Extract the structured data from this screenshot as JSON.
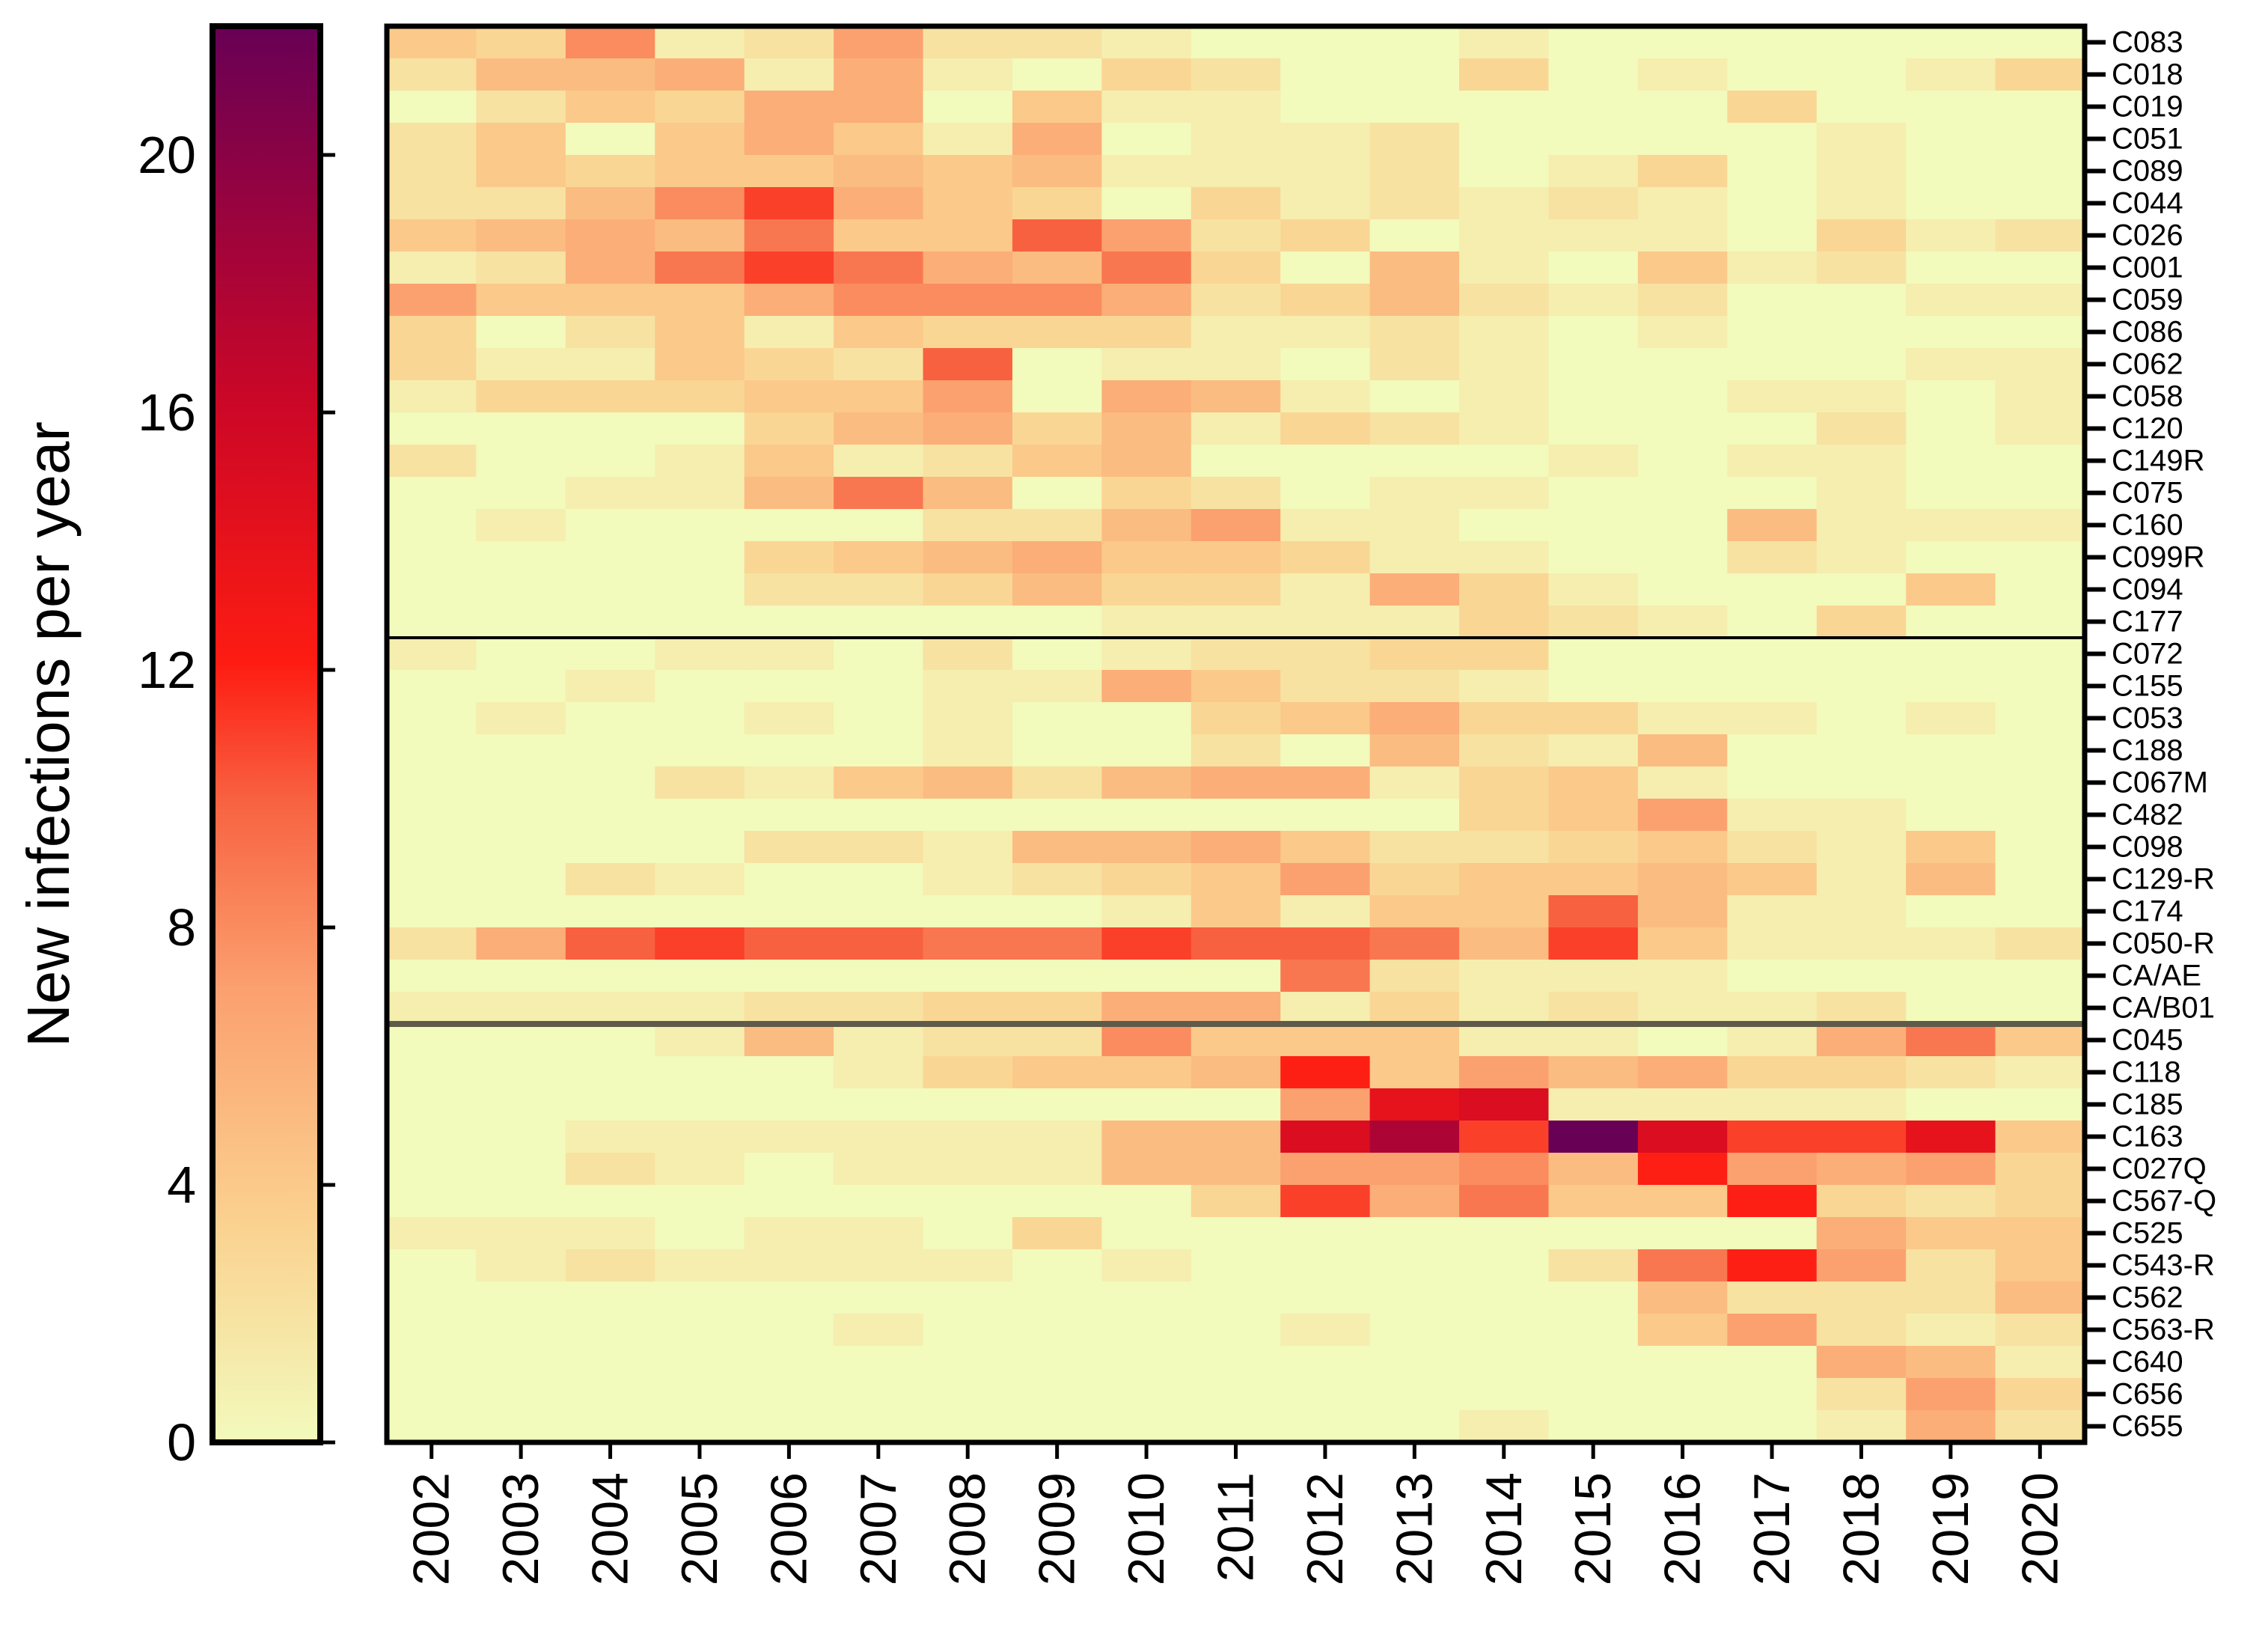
{
  "chart_data": {
    "type": "heatmap",
    "title": "",
    "xlabel": "",
    "ylabel": "",
    "colorbar": {
      "label": "New infections per year",
      "range": [
        0,
        22
      ],
      "ticks": [
        0,
        4,
        8,
        12,
        16,
        20
      ],
      "colorscale": [
        [
          0.0,
          "#f2fabc"
        ],
        [
          0.16,
          "#fbd08e"
        ],
        [
          0.32,
          "#fba06f"
        ],
        [
          0.45,
          "#f86442"
        ],
        [
          0.55,
          "#fe1c12"
        ],
        [
          0.73,
          "#cd0726"
        ],
        [
          1.0,
          "#680055"
        ]
      ]
    },
    "x": [
      "2002",
      "2003",
      "2004",
      "2005",
      "2006",
      "2007",
      "2008",
      "2009",
      "2010",
      "2011",
      "2012",
      "2013",
      "2014",
      "2015",
      "2016",
      "2017",
      "2018",
      "2019",
      "2020"
    ],
    "y": [
      "C083",
      "C018",
      "C019",
      "C051",
      "C089",
      "C044",
      "C026",
      "C001",
      "C059",
      "C086",
      "C062",
      "C058",
      "C120",
      "C149R",
      "C075",
      "C160",
      "C099R",
      "C094",
      "C177",
      "C072",
      "C155",
      "C053",
      "C188",
      "C067M",
      "C482",
      "C098",
      "C129-R",
      "C174",
      "C050-R",
      "CA/AE",
      "CA/B01",
      "C045",
      "C118",
      "C185",
      "C163",
      "C027Q",
      "C567-Q",
      "C525",
      "C543-R",
      "C562",
      "C563-R",
      "C640",
      "C656",
      "C655"
    ],
    "y_groups": [
      {
        "rows": [
          0,
          18
        ]
      },
      {
        "rows": [
          19,
          30
        ]
      },
      {
        "rows": [
          31,
          43
        ]
      }
    ],
    "values": [
      [
        4,
        3,
        8,
        1,
        2,
        7,
        2,
        2,
        1,
        0,
        0,
        0,
        1,
        0,
        0,
        0,
        0,
        0,
        0
      ],
      [
        2,
        5,
        5,
        6,
        1,
        6,
        1,
        0,
        3,
        2,
        0,
        0,
        3,
        0,
        1,
        0,
        0,
        1,
        3
      ],
      [
        0,
        2,
        4,
        3,
        6,
        6,
        0,
        4,
        1,
        1,
        0,
        0,
        0,
        0,
        0,
        3,
        0,
        0,
        0
      ],
      [
        2,
        4,
        0,
        4,
        6,
        4,
        1,
        6,
        0,
        1,
        1,
        2,
        0,
        0,
        0,
        0,
        1,
        0,
        0
      ],
      [
        2,
        4,
        3,
        4,
        4,
        5,
        4,
        5,
        1,
        1,
        1,
        2,
        0,
        1,
        3,
        0,
        1,
        0,
        0
      ],
      [
        2,
        2,
        5,
        8,
        11,
        6,
        4,
        3,
        0,
        3,
        1,
        2,
        1,
        2,
        1,
        0,
        1,
        0,
        0
      ],
      [
        4,
        5,
        6,
        5,
        9,
        4,
        4,
        10,
        7,
        2,
        3,
        0,
        1,
        1,
        1,
        0,
        3,
        1,
        2
      ],
      [
        1,
        2,
        6,
        9,
        11,
        9,
        6,
        5,
        9,
        3,
        0,
        5,
        1,
        0,
        4,
        1,
        2,
        0,
        0
      ],
      [
        7,
        4,
        4,
        4,
        6,
        8,
        8,
        8,
        6,
        2,
        3,
        5,
        2,
        1,
        2,
        0,
        0,
        1,
        1
      ],
      [
        3,
        0,
        2,
        4,
        1,
        4,
        3,
        3,
        3,
        1,
        1,
        2,
        1,
        0,
        1,
        0,
        0,
        0,
        0
      ],
      [
        3,
        1,
        1,
        4,
        3,
        2,
        10,
        0,
        1,
        1,
        0,
        2,
        1,
        0,
        0,
        0,
        0,
        1,
        1
      ],
      [
        1,
        3,
        3,
        3,
        4,
        4,
        7,
        0,
        6,
        5,
        1,
        0,
        1,
        0,
        0,
        1,
        1,
        0,
        1
      ],
      [
        0,
        0,
        0,
        0,
        3,
        5,
        6,
        3,
        5,
        1,
        3,
        2,
        1,
        0,
        0,
        0,
        2,
        0,
        1
      ],
      [
        2,
        0,
        0,
        1,
        4,
        1,
        2,
        4,
        5,
        0,
        0,
        0,
        0,
        1,
        0,
        1,
        1,
        0,
        0
      ],
      [
        0,
        0,
        1,
        1,
        5,
        9,
        5,
        0,
        3,
        2,
        0,
        1,
        1,
        0,
        0,
        0,
        1,
        0,
        0
      ],
      [
        0,
        1,
        0,
        0,
        0,
        0,
        2,
        2,
        5,
        7,
        1,
        1,
        0,
        0,
        0,
        5,
        1,
        1,
        1
      ],
      [
        0,
        0,
        0,
        0,
        3,
        4,
        5,
        6,
        4,
        4,
        3,
        1,
        1,
        0,
        0,
        2,
        1,
        0,
        0
      ],
      [
        0,
        0,
        0,
        0,
        2,
        2,
        3,
        5,
        3,
        3,
        1,
        6,
        3,
        1,
        0,
        0,
        0,
        4,
        0
      ],
      [
        0,
        0,
        0,
        0,
        0,
        0,
        0,
        0,
        1,
        1,
        1,
        1,
        3,
        2,
        1,
        0,
        3,
        0,
        0
      ],
      [
        1,
        0,
        0,
        1,
        1,
        0,
        2,
        0,
        1,
        2,
        2,
        3,
        3,
        0,
        0,
        0,
        0,
        0,
        0
      ],
      [
        0,
        0,
        1,
        0,
        0,
        0,
        1,
        1,
        6,
        4,
        2,
        2,
        1,
        0,
        0,
        0,
        0,
        0,
        0
      ],
      [
        0,
        1,
        0,
        0,
        1,
        0,
        1,
        0,
        0,
        3,
        4,
        6,
        3,
        3,
        1,
        1,
        0,
        1,
        0
      ],
      [
        0,
        0,
        0,
        0,
        0,
        0,
        1,
        0,
        0,
        2,
        0,
        5,
        2,
        1,
        5,
        0,
        0,
        0,
        0
      ],
      [
        0,
        0,
        0,
        2,
        1,
        4,
        5,
        2,
        5,
        6,
        6,
        1,
        3,
        4,
        1,
        0,
        0,
        0,
        0
      ],
      [
        0,
        0,
        0,
        0,
        0,
        0,
        0,
        0,
        0,
        0,
        0,
        0,
        3,
        4,
        7,
        1,
        1,
        0,
        0
      ],
      [
        0,
        0,
        0,
        0,
        2,
        2,
        1,
        5,
        5,
        6,
        4,
        2,
        2,
        3,
        4,
        2,
        1,
        4,
        0
      ],
      [
        0,
        0,
        2,
        1,
        0,
        0,
        1,
        2,
        3,
        4,
        7,
        3,
        4,
        4,
        5,
        4,
        1,
        5,
        0
      ],
      [
        0,
        0,
        0,
        0,
        0,
        0,
        0,
        0,
        1,
        4,
        1,
        4,
        4,
        10,
        5,
        1,
        1,
        0,
        0
      ],
      [
        2,
        6,
        10,
        11,
        10,
        10,
        9,
        9,
        11,
        10,
        10,
        9,
        5,
        11,
        4,
        1,
        1,
        1,
        2
      ],
      [
        0,
        0,
        0,
        0,
        0,
        0,
        0,
        0,
        0,
        0,
        9,
        2,
        1,
        1,
        1,
        0,
        0,
        0,
        0
      ],
      [
        1,
        1,
        1,
        1,
        2,
        2,
        3,
        3,
        6,
        6,
        1,
        3,
        1,
        2,
        1,
        1,
        2,
        0,
        0
      ],
      [
        0,
        0,
        0,
        1,
        5,
        1,
        2,
        2,
        8,
        4,
        4,
        4,
        1,
        1,
        0,
        1,
        6,
        9,
        4
      ],
      [
        0,
        0,
        0,
        0,
        0,
        1,
        3,
        4,
        4,
        5,
        12,
        4,
        7,
        5,
        6,
        3,
        3,
        2,
        1
      ],
      [
        0,
        0,
        0,
        0,
        0,
        0,
        0,
        0,
        0,
        0,
        7,
        14,
        15,
        1,
        1,
        1,
        1,
        0,
        0
      ],
      [
        0,
        0,
        1,
        1,
        1,
        1,
        1,
        1,
        5,
        5,
        15,
        18,
        11,
        22,
        15,
        11,
        11,
        14,
        4
      ],
      [
        0,
        0,
        2,
        1,
        0,
        1,
        1,
        1,
        5,
        5,
        7,
        7,
        8,
        5,
        12,
        7,
        6,
        7,
        3
      ],
      [
        0,
        0,
        0,
        0,
        0,
        0,
        0,
        0,
        0,
        3,
        11,
        6,
        9,
        4,
        4,
        12,
        3,
        2,
        3
      ],
      [
        1,
        1,
        1,
        0,
        1,
        1,
        0,
        3,
        0,
        0,
        0,
        0,
        0,
        0,
        0,
        0,
        6,
        4,
        4
      ],
      [
        0,
        1,
        2,
        1,
        1,
        1,
        1,
        0,
        1,
        0,
        0,
        0,
        0,
        2,
        9,
        12,
        7,
        2,
        4
      ],
      [
        0,
        0,
        0,
        0,
        0,
        0,
        0,
        0,
        0,
        0,
        0,
        0,
        0,
        0,
        5,
        2,
        2,
        2,
        5
      ],
      [
        0,
        0,
        0,
        0,
        0,
        1,
        0,
        0,
        0,
        0,
        1,
        0,
        0,
        0,
        4,
        7,
        2,
        1,
        2
      ],
      [
        0,
        0,
        0,
        0,
        0,
        0,
        0,
        0,
        0,
        0,
        0,
        0,
        0,
        0,
        0,
        0,
        6,
        5,
        1
      ],
      [
        0,
        0,
        0,
        0,
        0,
        0,
        0,
        0,
        0,
        0,
        0,
        0,
        0,
        0,
        0,
        0,
        2,
        7,
        3
      ],
      [
        0,
        0,
        0,
        0,
        0,
        0,
        0,
        0,
        0,
        0,
        0,
        0,
        1,
        0,
        0,
        0,
        1,
        6,
        2
      ]
    ]
  }
}
